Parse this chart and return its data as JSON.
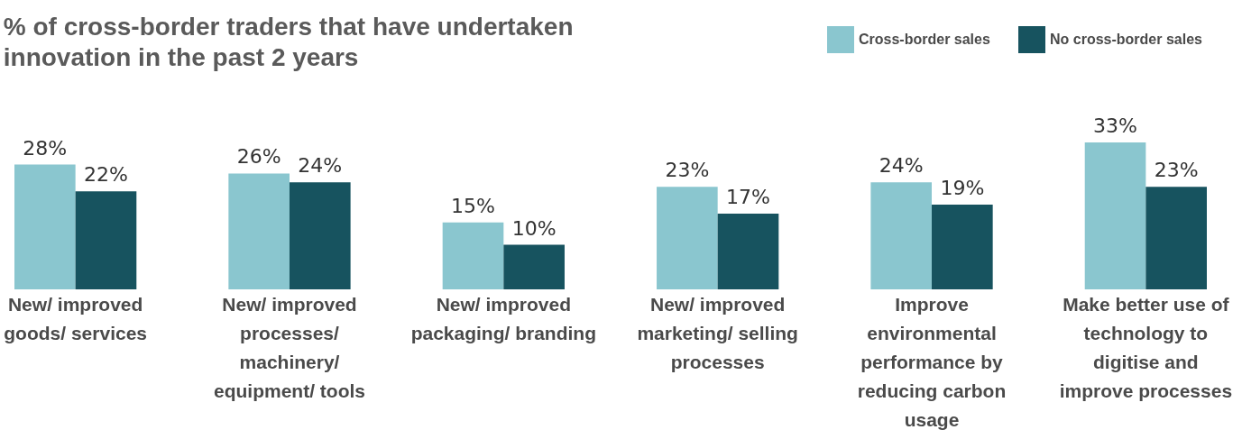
{
  "chart_data": {
    "type": "bar",
    "title": "% of  cross-border traders that have undertaken innovation in the past 2 years",
    "categories": [
      "New/ improved goods/ services",
      "New/ improved processes/ machinery/ equipment/ tools",
      "New/ improved packaging/ branding",
      "New/ improved marketing/ selling processes",
      "Improve environmental performance by reducing carbon usage",
      "Make better use of technology to digitise and improve processes"
    ],
    "series": [
      {
        "name": "Cross-border sales",
        "color": "#8ac6cf",
        "values": [
          28,
          26,
          15,
          23,
          24,
          33
        ],
        "value_labels": [
          "28%",
          "26%",
          "15%",
          "23%",
          "24%",
          "33%"
        ]
      },
      {
        "name": "No cross-border sales",
        "color": "#17535f",
        "values": [
          22,
          24,
          10,
          17,
          19,
          23
        ],
        "value_labels": [
          "22%",
          "24%",
          "10%",
          "17%",
          "19%",
          "23%"
        ]
      }
    ],
    "legend": "top right"
  }
}
